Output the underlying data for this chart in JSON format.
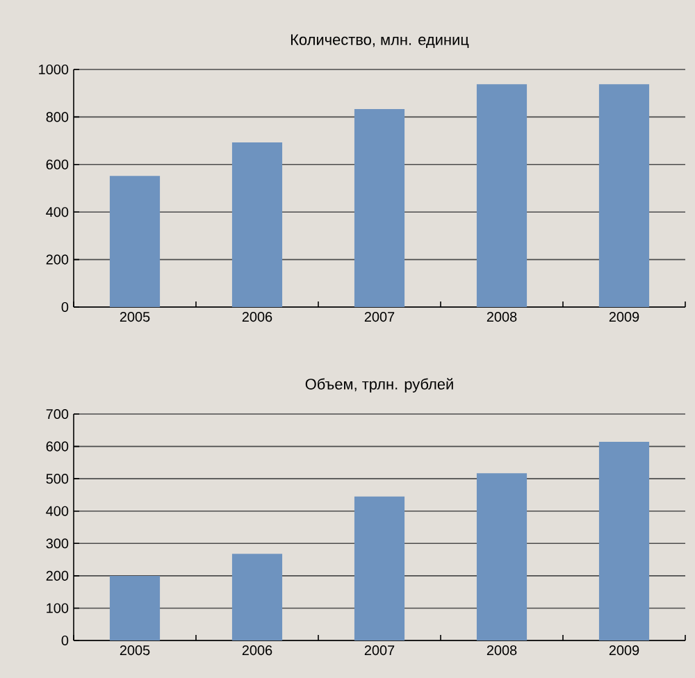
{
  "chart_data": [
    {
      "type": "bar",
      "title": "Количество, млн. единиц",
      "categories": [
        "2005",
        "2006",
        "2007",
        "2008",
        "2009"
      ],
      "values": [
        552,
        693,
        833,
        938,
        938
      ],
      "color": "#6e93bf",
      "ylim": [
        0,
        1000
      ],
      "yticks": [
        0,
        200,
        400,
        600,
        800,
        1000
      ],
      "grid": "y"
    },
    {
      "type": "bar",
      "title": "Объем, трлн. рублей",
      "categories": [
        "2005",
        "2006",
        "2007",
        "2008",
        "2009"
      ],
      "values": [
        200,
        268,
        445,
        517,
        614
      ],
      "color": "#6e93bf",
      "ylim": [
        0,
        700
      ],
      "yticks": [
        0,
        100,
        200,
        300,
        400,
        500,
        600,
        700
      ],
      "grid": "y"
    }
  ]
}
